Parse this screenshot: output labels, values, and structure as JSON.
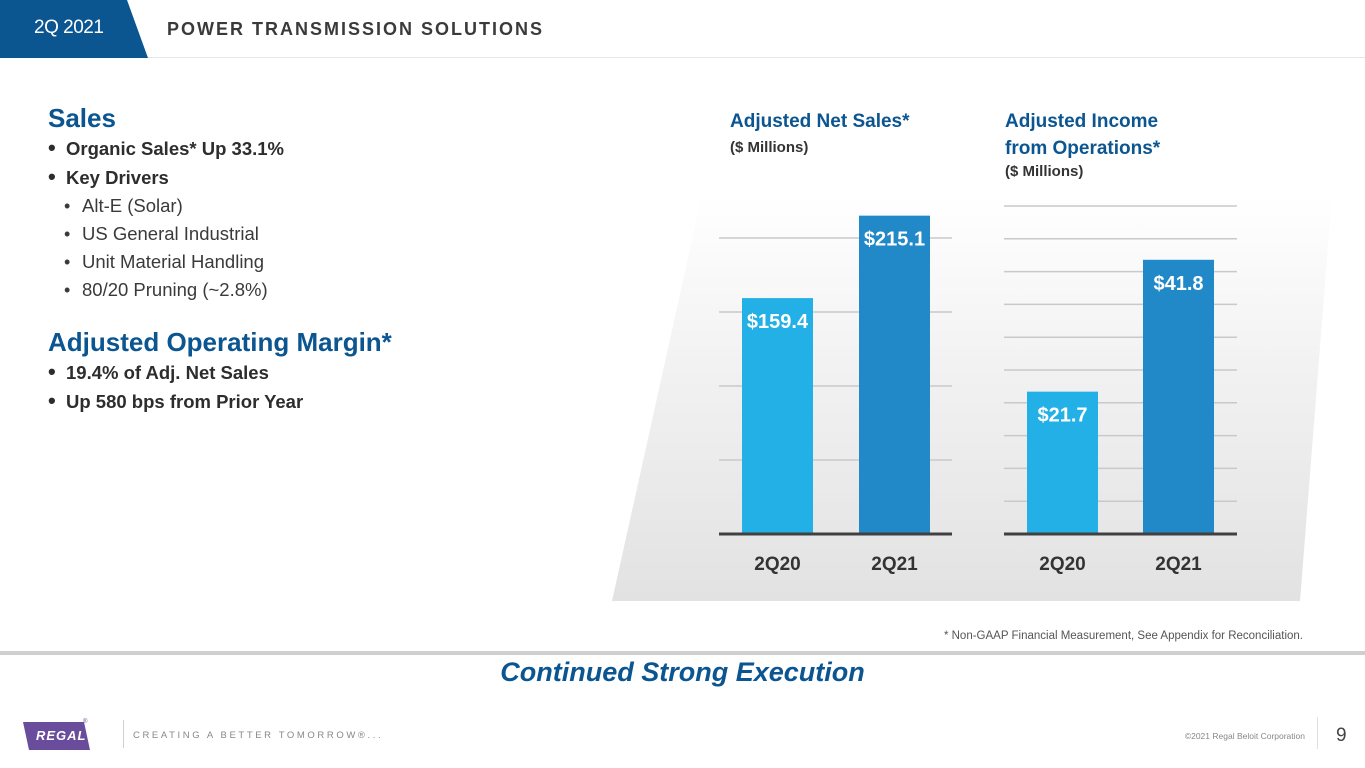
{
  "header": {
    "quarter": "2Q 2021",
    "title": "POWER TRANSMISSION SOLUTIONS"
  },
  "left": {
    "sales": {
      "title": "Sales",
      "bullets": [
        "Organic Sales* Up 33.1%",
        "Key Drivers"
      ],
      "drivers": [
        "Alt-E (Solar)",
        "US General Industrial",
        "Unit Material Handling",
        "80/20 Pruning (~2.8%)"
      ]
    },
    "margin": {
      "title": "Adjusted Operating Margin*",
      "bullets": [
        "19.4% of Adj. Net Sales",
        "Up 580 bps from Prior Year"
      ]
    }
  },
  "chart_data": [
    {
      "type": "bar",
      "title": "Adjusted Net Sales*",
      "subtitle": "($ Millions)",
      "categories": [
        "2Q20",
        "2Q21"
      ],
      "values": [
        159.4,
        215.1
      ],
      "data_labels": [
        "$159.4",
        "$215.1"
      ],
      "colors": [
        "#22b0e6",
        "#2289c8"
      ],
      "ylim": [
        0,
        250
      ],
      "gridlines": [
        50,
        100,
        150,
        200
      ],
      "grid": true,
      "xlabel": "",
      "ylabel": ""
    },
    {
      "type": "bar",
      "title": "Adjusted Income from Operations*",
      "title_lines": [
        "Adjusted Income",
        "from Operations*"
      ],
      "subtitle": "($ Millions)",
      "categories": [
        "2Q20",
        "2Q21"
      ],
      "values": [
        21.7,
        41.8
      ],
      "data_labels": [
        "$21.7",
        "$41.8"
      ],
      "colors": [
        "#22b0e6",
        "#2289c8"
      ],
      "ylim": [
        0,
        50
      ],
      "gridlines": [
        5,
        10,
        15,
        20,
        25,
        30,
        35,
        40,
        45,
        50
      ],
      "grid": true,
      "xlabel": "",
      "ylabel": ""
    }
  ],
  "footnote": "* Non-GAAP Financial Measurement, See Appendix for Reconciliation.",
  "tagline": "Continued Strong Execution",
  "footer": {
    "logo_text": "REGAL",
    "logo_mark": "®",
    "slogan": "CREATING A BETTER TOMORROW®...",
    "copyright": "©2021 Regal Beloit Corporation",
    "page_number": "9"
  },
  "colors": {
    "brand_blue": "#0b5591",
    "brand_purple": "#6a4c9c"
  }
}
